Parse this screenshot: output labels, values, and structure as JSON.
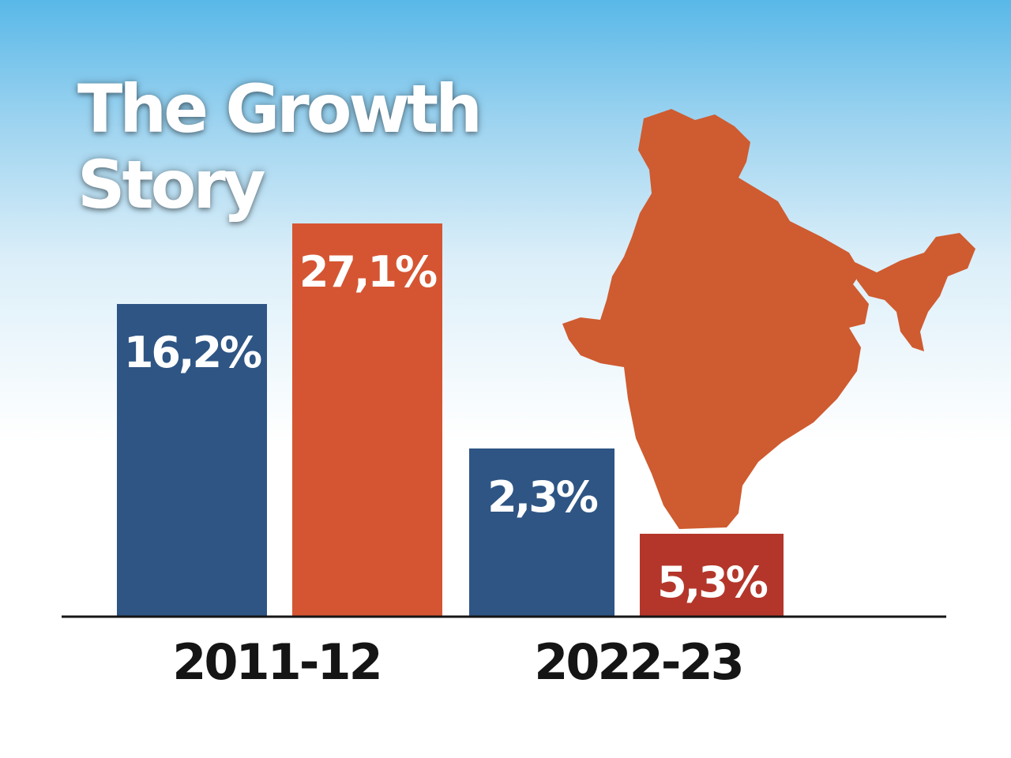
{
  "title": {
    "line1": "The Growth",
    "line2": "Story"
  },
  "colors": {
    "blue": "#2e5584",
    "orange": "#d55532",
    "red": "#b4362a",
    "map": "#cf5b30",
    "axis": "#151515"
  },
  "map_icon": "india-map",
  "chart_data": {
    "type": "bar",
    "title": "The Growth Story",
    "categories": [
      "2011-12",
      "2022-23"
    ],
    "series": [
      {
        "values": [
          16.2,
          2.3
        ],
        "labels": [
          "16,2%",
          "2,3%"
        ]
      },
      {
        "values": [
          27.1,
          5.3
        ],
        "labels": [
          "27,1%",
          "5,3%"
        ]
      }
    ],
    "value_scale": "not proportional; bars as drawn",
    "grid": false,
    "legend": "none"
  }
}
